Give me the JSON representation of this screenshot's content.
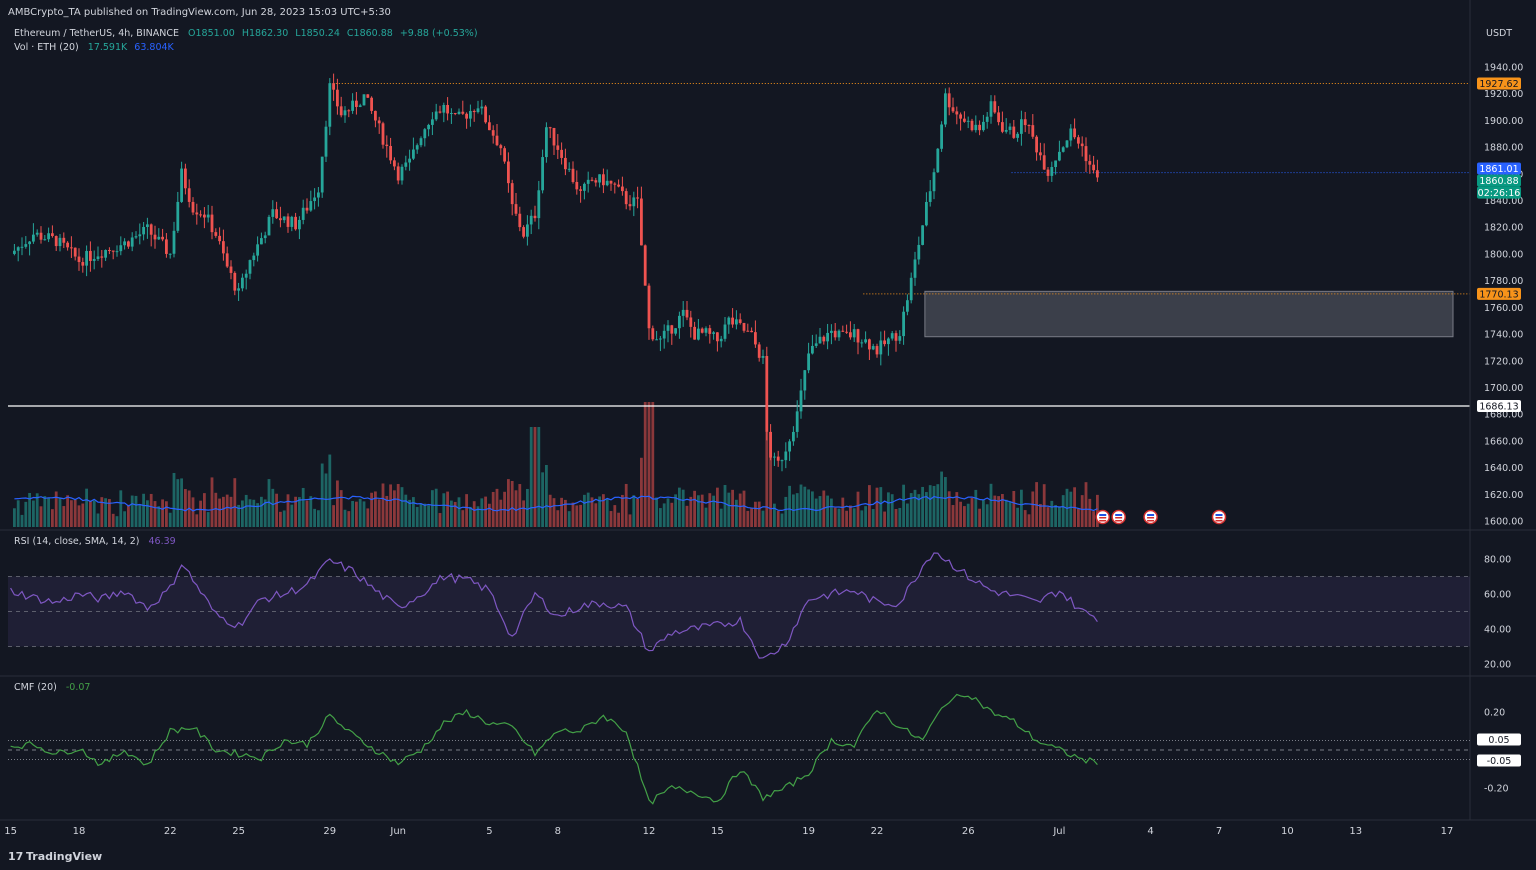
{
  "publisher": "AMBCrypto_TA published on TradingView.com, Jun 28, 2023 15:03 UTC+5:30",
  "symbol_line": {
    "name": "Ethereum / TetherUS, 4h, BINANCE",
    "open": "O1851.00",
    "high": "H1862.30",
    "low": "L1850.24",
    "close": "C1860.88",
    "change": "+9.88 (+0.53%)"
  },
  "volume_line": {
    "label": "Vol · ETH (20)",
    "v1": "17.591K",
    "v2": "63.804K"
  },
  "price_axis": {
    "currency": "USDT",
    "ticks": [
      "1940.00",
      "1920.00",
      "1900.00",
      "1880.00",
      "1860.00",
      "1840.00",
      "1820.00",
      "1800.00",
      "1780.00",
      "1760.00",
      "1740.00",
      "1720.00",
      "1700.00",
      "1680.00",
      "1660.00",
      "1640.00",
      "1620.00",
      "1600.00"
    ]
  },
  "price_badges": {
    "resistance": "1927.62",
    "bid": "1861.01",
    "last": "1860.88",
    "countdown": "02:26:16",
    "support": "1770.13",
    "white_line": "1686.13"
  },
  "rsi": {
    "label": "RSI (14, close, SMA, 14, 2)",
    "value": "46.39",
    "ticks": [
      "80.00",
      "60.00",
      "40.00",
      "20.00"
    ]
  },
  "cmf": {
    "label": "CMF (20)",
    "value": "-0.07",
    "ticks": [
      "0.20",
      "-0.20"
    ],
    "badge_pos": "0.05",
    "badge_neg": "-0.05"
  },
  "time_axis": {
    "labels": [
      "15",
      "18",
      "22",
      "25",
      "29",
      "Jun",
      "5",
      "8",
      "12",
      "15",
      "19",
      "22",
      "26",
      "Jul",
      "4",
      "7",
      "10",
      "13",
      "17"
    ]
  },
  "footer": {
    "brand": "TradingView"
  },
  "colors": {
    "up": "#26a69a",
    "down": "#ef5350",
    "orange": "#f7931a",
    "blue": "#2962ff",
    "rsi": "#7e57c2",
    "cmf": "#43a047",
    "zone": "#5d606b"
  },
  "chart_data": {
    "type": "candlestick",
    "symbol": "Ethereum / TetherUS",
    "interval": "4h",
    "exchange": "BINANCE",
    "ylim": [
      1600,
      1950
    ],
    "key_levels": {
      "resistance": 1927.62,
      "support": 1770.13,
      "white_line": 1686.13,
      "demand_zone": [
        1738,
        1772
      ]
    },
    "price_path": [
      [
        15,
        1800
      ],
      [
        16,
        1815
      ],
      [
        17,
        1810
      ],
      [
        18,
        1795
      ],
      [
        19,
        1802
      ],
      [
        20,
        1808
      ],
      [
        21,
        1818
      ],
      [
        22,
        1800
      ],
      [
        22.5,
        1860
      ],
      [
        23,
        1835
      ],
      [
        23.5,
        1830
      ],
      [
        24,
        1815
      ],
      [
        24.5,
        1790
      ],
      [
        25,
        1770
      ],
      [
        25.5,
        1795
      ],
      [
        26,
        1812
      ],
      [
        26.5,
        1830
      ],
      [
        27,
        1826
      ],
      [
        27.5,
        1822
      ],
      [
        28,
        1835
      ],
      [
        28.5,
        1850
      ],
      [
        29,
        1925
      ],
      [
        29.5,
        1905
      ],
      [
        30,
        1910
      ],
      [
        30.5,
        1918
      ],
      [
        31,
        1900
      ],
      [
        31.5,
        1880
      ],
      [
        32,
        1860
      ],
      [
        32.5,
        1868
      ],
      [
        33,
        1890
      ],
      [
        33.5,
        1905
      ],
      [
        34,
        1910
      ],
      [
        34.5,
        1900
      ],
      [
        35,
        1905
      ],
      [
        35.5,
        1912
      ],
      [
        36,
        1895
      ],
      [
        36.5,
        1880
      ],
      [
        37,
        1835
      ],
      [
        37.5,
        1815
      ],
      [
        38,
        1830
      ],
      [
        38.5,
        1895
      ],
      [
        39,
        1880
      ],
      [
        39.5,
        1862
      ],
      [
        40,
        1845
      ],
      [
        40.5,
        1855
      ],
      [
        41,
        1855
      ],
      [
        41.5,
        1850
      ],
      [
        42,
        1840
      ],
      [
        42.5,
        1838
      ],
      [
        43,
        1743
      ],
      [
        43.5,
        1735
      ],
      [
        44,
        1745
      ],
      [
        44.5,
        1755
      ],
      [
        45,
        1740
      ],
      [
        45.5,
        1740
      ],
      [
        46,
        1735
      ],
      [
        46.5,
        1750
      ],
      [
        47,
        1745
      ],
      [
        47.5,
        1738
      ],
      [
        48,
        1720
      ],
      [
        48.2,
        1655
      ],
      [
        48.6,
        1640
      ],
      [
        49,
        1655
      ],
      [
        49.5,
        1680
      ],
      [
        50,
        1725
      ],
      [
        50.5,
        1735
      ],
      [
        51,
        1742
      ],
      [
        51.5,
        1738
      ],
      [
        52,
        1740
      ],
      [
        52.5,
        1735
      ],
      [
        53,
        1728
      ],
      [
        53.5,
        1735
      ],
      [
        54,
        1742
      ],
      [
        54.5,
        1780
      ],
      [
        55,
        1822
      ],
      [
        55.5,
        1862
      ],
      [
        56,
        1918
      ],
      [
        56.5,
        1905
      ],
      [
        57,
        1898
      ],
      [
        57.5,
        1893
      ],
      [
        58,
        1910
      ],
      [
        58.5,
        1895
      ],
      [
        59,
        1890
      ],
      [
        59.5,
        1900
      ],
      [
        60,
        1880
      ],
      [
        60.5,
        1862
      ],
      [
        61,
        1878
      ],
      [
        61.5,
        1891
      ],
      [
        62,
        1880
      ],
      [
        62.5,
        1860
      ],
      [
        62.8,
        1861
      ]
    ],
    "rsi_path": [
      [
        15,
        62
      ],
      [
        16,
        58
      ],
      [
        17,
        55
      ],
      [
        18,
        60
      ],
      [
        19,
        57
      ],
      [
        20,
        62
      ],
      [
        21,
        52
      ],
      [
        22,
        63
      ],
      [
        22.5,
        78
      ],
      [
        23,
        68
      ],
      [
        24,
        48
      ],
      [
        25,
        42
      ],
      [
        26,
        57
      ],
      [
        27,
        60
      ],
      [
        28,
        65
      ],
      [
        29,
        79
      ],
      [
        30,
        73
      ],
      [
        31,
        62
      ],
      [
        32,
        52
      ],
      [
        33,
        60
      ],
      [
        34,
        70
      ],
      [
        35,
        68
      ],
      [
        36,
        62
      ],
      [
        37,
        35
      ],
      [
        38,
        60
      ],
      [
        39,
        47
      ],
      [
        40,
        53
      ],
      [
        41,
        55
      ],
      [
        42,
        52
      ],
      [
        43,
        27
      ],
      [
        44,
        38
      ],
      [
        45,
        40
      ],
      [
        46,
        42
      ],
      [
        47,
        45
      ],
      [
        48,
        22
      ],
      [
        49,
        32
      ],
      [
        50,
        57
      ],
      [
        51,
        60
      ],
      [
        52,
        62
      ],
      [
        53,
        55
      ],
      [
        54,
        55
      ],
      [
        55,
        76
      ],
      [
        55.5,
        85
      ],
      [
        56,
        80
      ],
      [
        57,
        70
      ],
      [
        58,
        62
      ],
      [
        59,
        59
      ],
      [
        60,
        55
      ],
      [
        61,
        62
      ],
      [
        62,
        50
      ],
      [
        62.8,
        46
      ]
    ],
    "cmf_path": [
      [
        15,
        0.02
      ],
      [
        16,
        0.03
      ],
      [
        17,
        -0.02
      ],
      [
        18,
        0.01
      ],
      [
        19,
        -0.08
      ],
      [
        20,
        0.0
      ],
      [
        21,
        -0.08
      ],
      [
        22,
        0.1
      ],
      [
        23,
        0.12
      ],
      [
        24,
        0.0
      ],
      [
        25,
        -0.02
      ],
      [
        26,
        -0.04
      ],
      [
        27,
        0.05
      ],
      [
        28,
        0.03
      ],
      [
        29,
        0.18
      ],
      [
        30,
        0.08
      ],
      [
        31,
        0.0
      ],
      [
        32,
        -0.07
      ],
      [
        33,
        0.0
      ],
      [
        34,
        0.14
      ],
      [
        35,
        0.2
      ],
      [
        36,
        0.14
      ],
      [
        37,
        0.12
      ],
      [
        38,
        -0.02
      ],
      [
        39,
        0.1
      ],
      [
        40,
        0.1
      ],
      [
        41,
        0.18
      ],
      [
        42,
        0.1
      ],
      [
        43,
        -0.28
      ],
      [
        44,
        -0.2
      ],
      [
        45,
        -0.22
      ],
      [
        46,
        -0.27
      ],
      [
        47,
        -0.1
      ],
      [
        48,
        -0.25
      ],
      [
        49,
        -0.2
      ],
      [
        50,
        -0.12
      ],
      [
        51,
        0.05
      ],
      [
        52,
        0.02
      ],
      [
        53,
        0.22
      ],
      [
        54,
        0.12
      ],
      [
        55,
        0.05
      ],
      [
        56,
        0.25
      ],
      [
        57,
        0.3
      ],
      [
        58,
        0.2
      ],
      [
        59,
        0.15
      ],
      [
        60,
        0.05
      ],
      [
        61,
        0.0
      ],
      [
        62,
        -0.05
      ],
      [
        62.8,
        -0.07
      ]
    ]
  }
}
